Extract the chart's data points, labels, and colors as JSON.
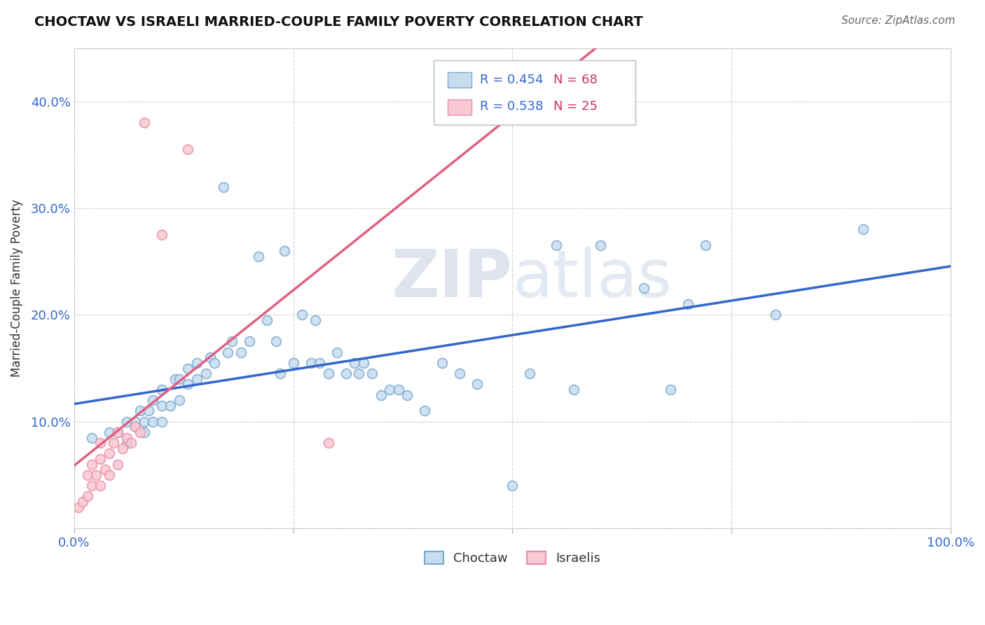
{
  "title": "CHOCTAW VS ISRAELI MARRIED-COUPLE FAMILY POVERTY CORRELATION CHART",
  "source": "Source: ZipAtlas.com",
  "ylabel_label": "Married-Couple Family Poverty",
  "x_min": 0.0,
  "x_max": 1.0,
  "y_min": 0.0,
  "y_max": 0.45,
  "x_ticks": [
    0.0,
    0.25,
    0.5,
    0.75,
    1.0
  ],
  "x_tick_labels": [
    "0.0%",
    "",
    "",
    "",
    "100.0%"
  ],
  "y_ticks": [
    0.0,
    0.1,
    0.2,
    0.3,
    0.4
  ],
  "y_tick_labels": [
    "",
    "10.0%",
    "20.0%",
    "30.0%",
    "40.0%"
  ],
  "grid_color": "#cccccc",
  "background_color": "#ffffff",
  "choctaw_face_color": "#c8dcf0",
  "choctaw_edge_color": "#7aaad0",
  "israeli_face_color": "#f8c8d4",
  "israeli_edge_color": "#e890a8",
  "choctaw_line_color": "#3366cc",
  "israeli_line_color": "#e06080",
  "choctaw_R": 0.454,
  "choctaw_N": 68,
  "israeli_R": 0.538,
  "israeli_N": 25,
  "legend_R_color": "#3366cc",
  "legend_N_color": "#cc3366",
  "watermark_zip": "ZIP",
  "watermark_atlas": "atlas",
  "choctaw_x": [
    0.02,
    0.04,
    0.05,
    0.06,
    0.06,
    0.07,
    0.07,
    0.075,
    0.08,
    0.08,
    0.085,
    0.09,
    0.09,
    0.1,
    0.1,
    0.1,
    0.11,
    0.115,
    0.12,
    0.12,
    0.13,
    0.13,
    0.14,
    0.14,
    0.15,
    0.155,
    0.16,
    0.17,
    0.175,
    0.18,
    0.19,
    0.2,
    0.21,
    0.22,
    0.23,
    0.235,
    0.24,
    0.25,
    0.26,
    0.27,
    0.275,
    0.28,
    0.29,
    0.3,
    0.31,
    0.32,
    0.325,
    0.33,
    0.34,
    0.35,
    0.36,
    0.37,
    0.38,
    0.4,
    0.42,
    0.44,
    0.46,
    0.5,
    0.52,
    0.55,
    0.57,
    0.6,
    0.65,
    0.68,
    0.7,
    0.72,
    0.8,
    0.9
  ],
  "choctaw_y": [
    0.085,
    0.09,
    0.09,
    0.08,
    0.1,
    0.095,
    0.1,
    0.11,
    0.09,
    0.1,
    0.11,
    0.1,
    0.12,
    0.1,
    0.115,
    0.13,
    0.115,
    0.14,
    0.12,
    0.14,
    0.135,
    0.15,
    0.14,
    0.155,
    0.145,
    0.16,
    0.155,
    0.32,
    0.165,
    0.175,
    0.165,
    0.175,
    0.255,
    0.195,
    0.175,
    0.145,
    0.26,
    0.155,
    0.2,
    0.155,
    0.195,
    0.155,
    0.145,
    0.165,
    0.145,
    0.155,
    0.145,
    0.155,
    0.145,
    0.125,
    0.13,
    0.13,
    0.125,
    0.11,
    0.155,
    0.145,
    0.135,
    0.04,
    0.145,
    0.265,
    0.13,
    0.265,
    0.225,
    0.13,
    0.21,
    0.265,
    0.2,
    0.28
  ],
  "israeli_x": [
    0.005,
    0.01,
    0.015,
    0.015,
    0.02,
    0.02,
    0.025,
    0.03,
    0.03,
    0.03,
    0.035,
    0.04,
    0.04,
    0.045,
    0.05,
    0.05,
    0.055,
    0.06,
    0.065,
    0.07,
    0.075,
    0.08,
    0.1,
    0.13,
    0.29
  ],
  "israeli_y": [
    0.02,
    0.025,
    0.03,
    0.05,
    0.04,
    0.06,
    0.05,
    0.04,
    0.065,
    0.08,
    0.055,
    0.07,
    0.05,
    0.08,
    0.06,
    0.09,
    0.075,
    0.085,
    0.08,
    0.095,
    0.09,
    0.38,
    0.275,
    0.355,
    0.08
  ]
}
